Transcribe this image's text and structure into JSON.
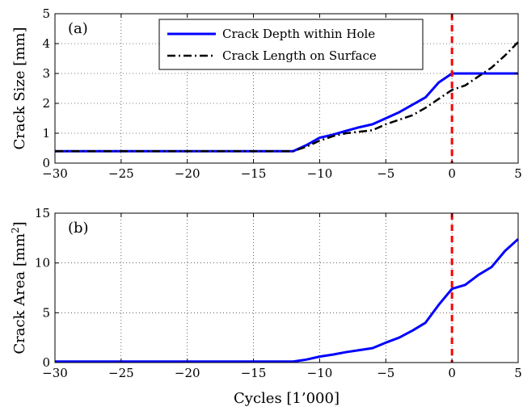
{
  "chart_data": [
    {
      "type": "line",
      "panel_label": "(a)",
      "xlabel": "",
      "ylabel": "Crack Size [mm]",
      "xlim": [
        -30,
        5
      ],
      "ylim": [
        0,
        5
      ],
      "xticks": [
        -30,
        -25,
        -20,
        -15,
        -10,
        -5,
        0,
        5
      ],
      "yticks": [
        0,
        1,
        2,
        3,
        4,
        5
      ],
      "grid": true,
      "legend_position": "top-center",
      "vline": {
        "x": 0,
        "color": "#ff0000",
        "style": "dashed"
      },
      "series": [
        {
          "name": "Crack Depth within Hole",
          "color": "#0000ff",
          "style": "solid",
          "x": [
            -30,
            -12,
            -11,
            -10,
            -9,
            -8,
            -7,
            -6,
            -5,
            -4,
            -3,
            -2,
            -1,
            0,
            1,
            2,
            3,
            4,
            5
          ],
          "y": [
            0.4,
            0.4,
            0.6,
            0.85,
            0.95,
            1.08,
            1.2,
            1.3,
            1.5,
            1.7,
            1.95,
            2.2,
            2.7,
            3.0,
            3.0,
            3.0,
            3.0,
            3.0,
            3.0
          ]
        },
        {
          "name": "Crack Length on Surface",
          "color": "#000000",
          "style": "dashdot",
          "x": [
            -30,
            -12,
            -11,
            -10,
            -9,
            -8,
            -7,
            -6,
            -5,
            -4,
            -3,
            -2,
            -1,
            0,
            1,
            2,
            3,
            4,
            5
          ],
          "y": [
            0.4,
            0.4,
            0.55,
            0.75,
            0.9,
            1.0,
            1.05,
            1.1,
            1.3,
            1.45,
            1.6,
            1.85,
            2.15,
            2.45,
            2.6,
            2.9,
            3.2,
            3.6,
            4.05
          ]
        }
      ]
    },
    {
      "type": "line",
      "panel_label": "(b)",
      "xlabel": "Cycles [1’000]",
      "ylabel": "Crack Area [mm",
      "ylabel_sup": "2",
      "ylabel_end": "]",
      "xlim": [
        -30,
        5
      ],
      "ylim": [
        0,
        15
      ],
      "xticks": [
        -30,
        -25,
        -20,
        -15,
        -10,
        -5,
        0,
        5
      ],
      "yticks": [
        0,
        5,
        10,
        15
      ],
      "grid": true,
      "vline": {
        "x": 0,
        "color": "#ff0000",
        "style": "dashed"
      },
      "series": [
        {
          "name": "",
          "color": "#0000ff",
          "style": "solid",
          "x": [
            -30,
            -12,
            -11,
            -10,
            -9,
            -8,
            -7,
            -6,
            -5,
            -4,
            -3,
            -2,
            -1,
            0,
            1,
            2,
            3,
            4,
            5
          ],
          "y": [
            0.1,
            0.1,
            0.3,
            0.6,
            0.8,
            1.05,
            1.25,
            1.45,
            2.0,
            2.5,
            3.2,
            4.0,
            5.8,
            7.4,
            7.8,
            8.8,
            9.6,
            11.2,
            12.4
          ]
        }
      ]
    }
  ]
}
